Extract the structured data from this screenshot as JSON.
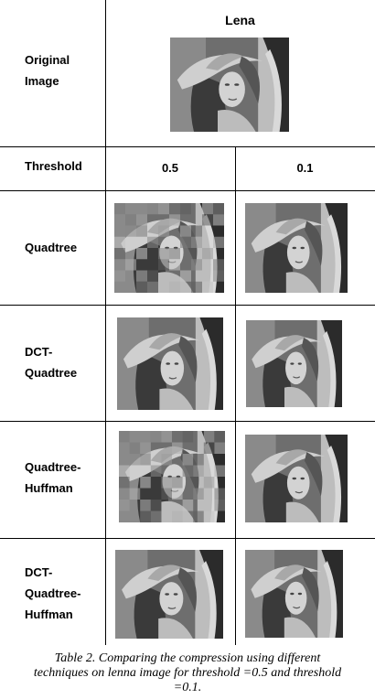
{
  "header": {
    "column_title": "Lena"
  },
  "rows": {
    "original": {
      "label_line1": "Original",
      "label_line2": "Image"
    },
    "threshold": {
      "label": "Threshold",
      "col1": "0.5",
      "col2": "0.1"
    },
    "quadtree": {
      "label": "Quadtree"
    },
    "dct_quadtree": {
      "label_line1": "DCT-",
      "label_line2": "Quadtree"
    },
    "quadtree_huffman": {
      "label_line1": "Quadtree-",
      "label_line2": "Huffman"
    },
    "dct_quadtree_huffman": {
      "label_line1": "DCT-",
      "label_line2": "Quadtree-",
      "label_line3": "Huffman"
    }
  },
  "caption": {
    "line1": "Table 2. Comparing the compression using different",
    "line2": "techniques on lenna image for threshold =0.5 and threshold",
    "line3": "=0.1."
  }
}
